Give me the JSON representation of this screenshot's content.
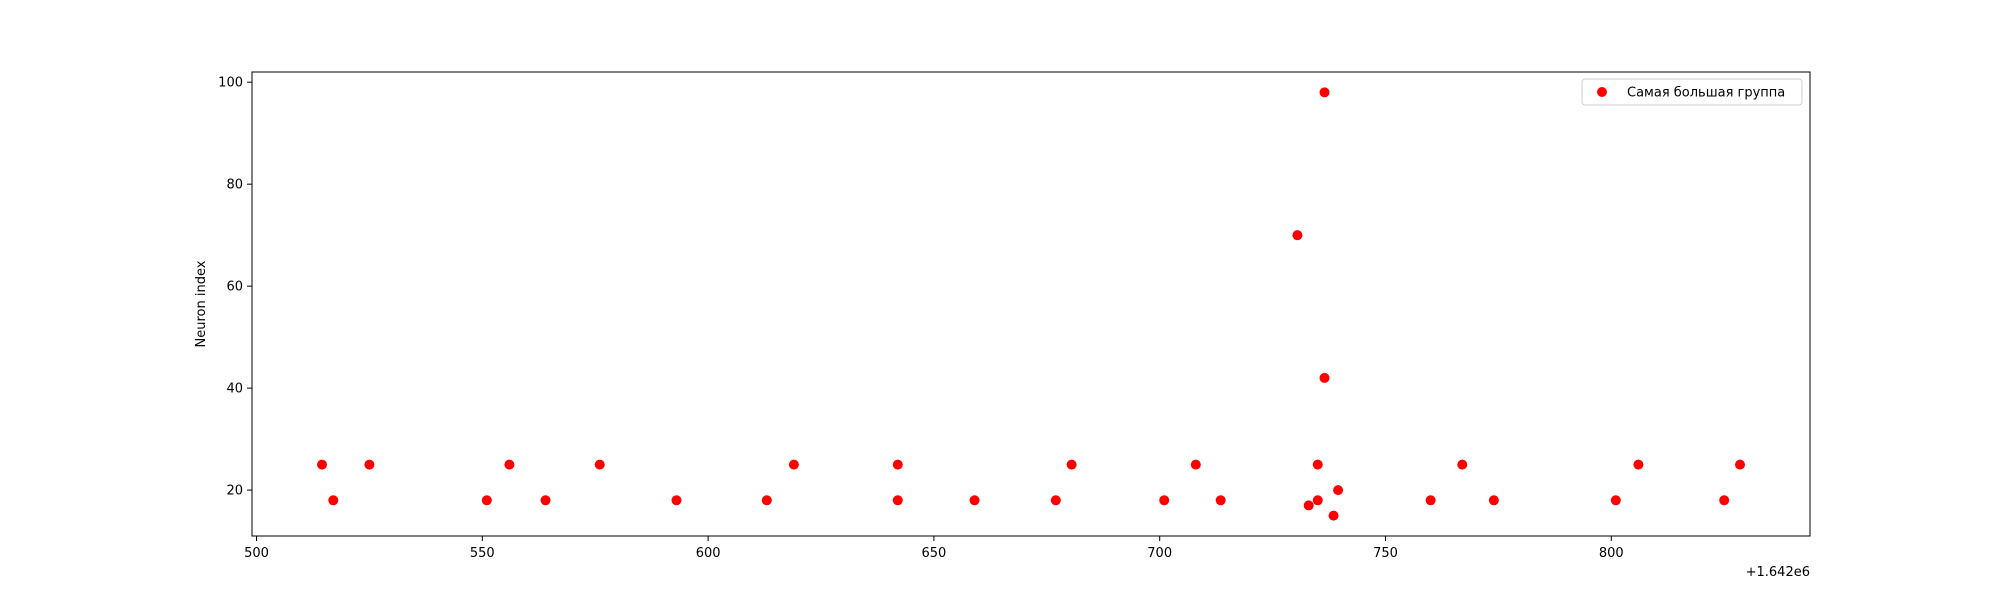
{
  "chart_data": {
    "type": "scatter",
    "title": "",
    "xlabel": "",
    "ylabel": "Neuron index",
    "x_offset_label": "+1.642e6",
    "xlim": [
      1642499,
      1642844
    ],
    "ylim": [
      11,
      102
    ],
    "x_ticks": [
      1642500,
      1642550,
      1642600,
      1642650,
      1642700,
      1642750,
      1642800
    ],
    "x_tick_labels": [
      "500",
      "550",
      "600",
      "650",
      "700",
      "750",
      "800"
    ],
    "y_ticks": [
      20,
      40,
      60,
      80,
      100
    ],
    "y_tick_labels": [
      "20",
      "40",
      "60",
      "80",
      "100"
    ],
    "grid": false,
    "legend_position": "top-right",
    "series": [
      {
        "name": "Самая большая группа",
        "color": "#ff0000",
        "points": [
          {
            "x": 1642514.5,
            "y": 25
          },
          {
            "x": 1642517.0,
            "y": 18
          },
          {
            "x": 1642525.0,
            "y": 25
          },
          {
            "x": 1642551.0,
            "y": 18
          },
          {
            "x": 1642556.0,
            "y": 25
          },
          {
            "x": 1642564.0,
            "y": 18
          },
          {
            "x": 1642576.0,
            "y": 25
          },
          {
            "x": 1642593.0,
            "y": 18
          },
          {
            "x": 1642613.0,
            "y": 18
          },
          {
            "x": 1642619.0,
            "y": 25
          },
          {
            "x": 1642642.0,
            "y": 18
          },
          {
            "x": 1642642.0,
            "y": 25
          },
          {
            "x": 1642659.0,
            "y": 18
          },
          {
            "x": 1642677.0,
            "y": 18
          },
          {
            "x": 1642680.5,
            "y": 25
          },
          {
            "x": 1642701.0,
            "y": 18
          },
          {
            "x": 1642708.0,
            "y": 25
          },
          {
            "x": 1642713.5,
            "y": 18
          },
          {
            "x": 1642730.5,
            "y": 70
          },
          {
            "x": 1642733.0,
            "y": 17
          },
          {
            "x": 1642735.0,
            "y": 25
          },
          {
            "x": 1642735.0,
            "y": 18
          },
          {
            "x": 1642736.5,
            "y": 98
          },
          {
            "x": 1642736.5,
            "y": 42
          },
          {
            "x": 1642738.5,
            "y": 15
          },
          {
            "x": 1642739.5,
            "y": 20
          },
          {
            "x": 1642760.0,
            "y": 18
          },
          {
            "x": 1642767.0,
            "y": 25
          },
          {
            "x": 1642774.0,
            "y": 18
          },
          {
            "x": 1642801.0,
            "y": 18
          },
          {
            "x": 1642806.0,
            "y": 25
          },
          {
            "x": 1642825.0,
            "y": 18
          },
          {
            "x": 1642828.5,
            "y": 25
          }
        ]
      }
    ]
  }
}
